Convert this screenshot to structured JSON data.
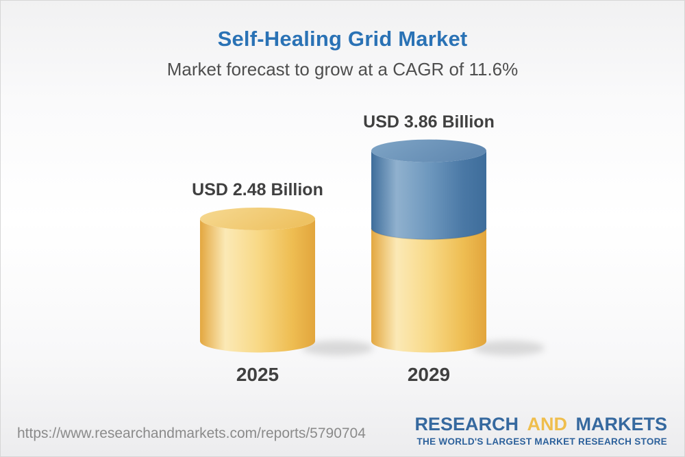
{
  "page": {
    "title": "Self-Healing Grid Market",
    "subtitle": "Market forecast to grow at a CAGR of 11.6%"
  },
  "chart_data": {
    "type": "bar",
    "style": "3d-stacked-cylinders",
    "categories": [
      "2025",
      "2029"
    ],
    "values": [
      2.48,
      3.86
    ],
    "value_labels": [
      "USD 2.48 Billion",
      "USD 3.86 Billion"
    ],
    "unit": "USD Billion",
    "cagr_percent": 11.6,
    "legend": "none",
    "axes": "none",
    "colors": {
      "base_segment": "#f3cd76",
      "growth_segment": "#6c97bd"
    }
  },
  "footer": {
    "url": "https://www.researchandmarkets.com/reports/5790704",
    "logo": {
      "line1_part1": "RESEARCH",
      "line1_part2": "AND",
      "line1_part3": "MARKETS",
      "tagline": "THE WORLD'S LARGEST MARKET RESEARCH STORE",
      "brand_blue": "#36699f",
      "brand_gold": "#efbe4d"
    }
  },
  "theme": {
    "title_color": "#2a72b5",
    "text_dark": "#404040",
    "url_color": "#8a8a8a"
  }
}
